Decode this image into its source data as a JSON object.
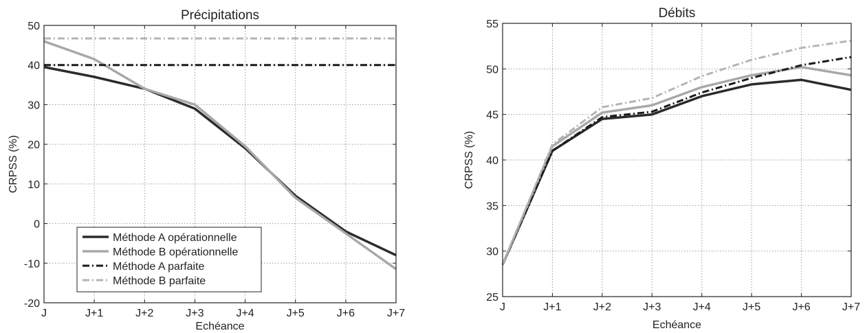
{
  "chart_data": [
    {
      "type": "line",
      "title": "Précipitations",
      "xlabel": "Echéance",
      "ylabel": "CRPSS (%)",
      "categories": [
        "J",
        "J+1",
        "J+2",
        "J+3",
        "J+4",
        "J+5",
        "J+6",
        "J+7"
      ],
      "ylim": [
        -20,
        50
      ],
      "yticks": [
        -20,
        -10,
        0,
        10,
        20,
        30,
        40,
        50
      ],
      "grid": true,
      "legend_position": "bottom-left",
      "series": [
        {
          "name": "Méthode A opérationnelle",
          "values": [
            39.5,
            37,
            34,
            29,
            19,
            7,
            -2,
            -8
          ],
          "color": "#2b2b2b",
          "dash": "solid"
        },
        {
          "name": "Méthode B opérationnelle",
          "values": [
            46,
            41.5,
            34,
            30,
            19.5,
            6.5,
            -2.5,
            -11.5
          ],
          "color": "#a8a8a8",
          "dash": "solid"
        },
        {
          "name": "Méthode A parfaite",
          "values": [
            40,
            40,
            40,
            40,
            40,
            40,
            40,
            40
          ],
          "color": "#1a1a1a",
          "dash": "dashdot"
        },
        {
          "name": "Méthode B parfaite",
          "values": [
            46.7,
            46.7,
            46.7,
            46.7,
            46.7,
            46.7,
            46.7,
            46.7
          ],
          "color": "#b4b4b4",
          "dash": "dashdot"
        }
      ]
    },
    {
      "type": "line",
      "title": "Débits",
      "xlabel": "Echéance",
      "ylabel": "CRPSS (%)",
      "categories": [
        "J",
        "J+1",
        "J+2",
        "J+3",
        "J+4",
        "J+5",
        "J+6",
        "J+7"
      ],
      "ylim": [
        25,
        55
      ],
      "yticks": [
        25,
        30,
        35,
        40,
        45,
        50,
        55
      ],
      "grid": true,
      "series": [
        {
          "values": [
            28.5,
            41,
            44.5,
            45,
            47,
            48.3,
            48.8,
            47.7
          ],
          "color": "#2b2b2b",
          "dash": "solid"
        },
        {
          "values": [
            28.5,
            41.5,
            45.2,
            46,
            48,
            49.3,
            50.2,
            49.3
          ],
          "color": "#a8a8a8",
          "dash": "solid"
        },
        {
          "values": [
            28.5,
            41,
            44.7,
            45.3,
            47.4,
            49,
            50.4,
            51.3
          ],
          "color": "#1a1a1a",
          "dash": "dashdot"
        },
        {
          "values": [
            28.5,
            41.7,
            45.8,
            46.8,
            49.2,
            51,
            52.3,
            53.1
          ],
          "color": "#b4b4b4",
          "dash": "dashdot"
        }
      ]
    }
  ]
}
